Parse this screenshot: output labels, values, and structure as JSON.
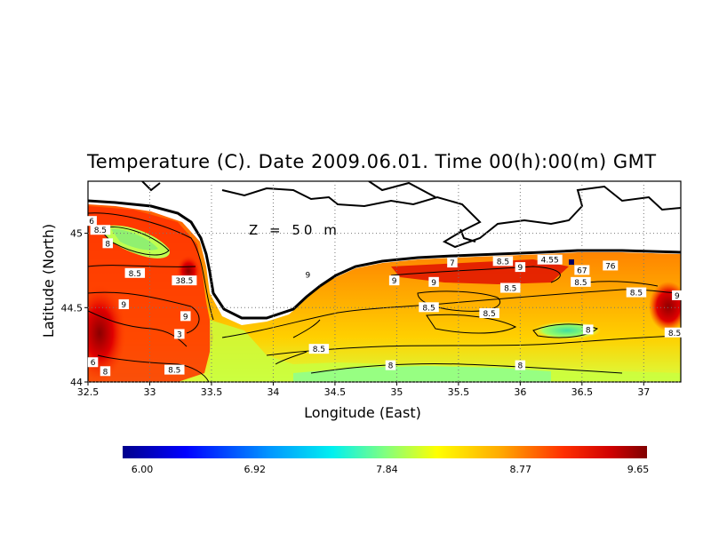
{
  "title": "Temperature (C). Date 2009.06.01. Time 00(h):00(m) GMT",
  "depth_label": "Z = 50 m",
  "axes": {
    "xlabel": "Longitude (East)",
    "ylabel": "Latitude (North)",
    "xlim": [
      32.5,
      37.3
    ],
    "ylim": [
      44.0,
      45.35
    ],
    "xticks": [
      "32.5",
      "33",
      "33.5",
      "34",
      "34.5",
      "35",
      "35.5",
      "36",
      "36.5",
      "37"
    ],
    "yticks": [
      "44",
      "44.5",
      "45"
    ],
    "grid": "dotted"
  },
  "colorbar": {
    "ticks": [
      "6.00",
      "6.92",
      "7.84",
      "8.77",
      "9.65"
    ],
    "min": 6.0,
    "max": 9.65
  },
  "contour_labels": [
    {
      "text": "6",
      "lon": 32.53,
      "lat": 45.08
    },
    {
      "text": "8.5",
      "lon": 32.6,
      "lat": 45.02
    },
    {
      "text": "8",
      "lon": 32.66,
      "lat": 44.93
    },
    {
      "text": "8.5",
      "lon": 32.88,
      "lat": 44.73
    },
    {
      "text": "38.5",
      "lon": 33.28,
      "lat": 44.68
    },
    {
      "text": "9",
      "lon": 32.79,
      "lat": 44.52
    },
    {
      "text": "9",
      "lon": 33.29,
      "lat": 44.44
    },
    {
      "text": "3",
      "lon": 33.24,
      "lat": 44.32
    },
    {
      "text": "6",
      "lon": 32.54,
      "lat": 44.13
    },
    {
      "text": "8",
      "lon": 32.64,
      "lat": 44.07
    },
    {
      "text": "8.5",
      "lon": 33.2,
      "lat": 44.08
    },
    {
      "text": "8.5",
      "lon": 34.37,
      "lat": 44.22
    },
    {
      "text": "8",
      "lon": 34.95,
      "lat": 44.11
    },
    {
      "text": "8",
      "lon": 36.0,
      "lat": 44.11
    },
    {
      "text": "9",
      "lon": 34.28,
      "lat": 44.72
    },
    {
      "text": "9",
      "lon": 34.98,
      "lat": 44.68
    },
    {
      "text": "9",
      "lon": 35.3,
      "lat": 44.67
    },
    {
      "text": "8.5",
      "lon": 35.26,
      "lat": 44.5
    },
    {
      "text": "8.5",
      "lon": 35.75,
      "lat": 44.46
    },
    {
      "text": "8.5",
      "lon": 35.92,
      "lat": 44.63
    },
    {
      "text": "7",
      "lon": 35.45,
      "lat": 44.8
    },
    {
      "text": "8.5",
      "lon": 35.86,
      "lat": 44.81
    },
    {
      "text": "9",
      "lon": 36.0,
      "lat": 44.77
    },
    {
      "text": "4.55",
      "lon": 36.24,
      "lat": 44.82
    },
    {
      "text": "67",
      "lon": 36.5,
      "lat": 44.75
    },
    {
      "text": "76",
      "lon": 36.73,
      "lat": 44.78
    },
    {
      "text": "8.5",
      "lon": 36.49,
      "lat": 44.67
    },
    {
      "text": "8.5",
      "lon": 36.94,
      "lat": 44.6
    },
    {
      "text": "8",
      "lon": 36.55,
      "lat": 44.35
    },
    {
      "text": "8.5",
      "lon": 37.25,
      "lat": 44.33
    },
    {
      "text": "9",
      "lon": 37.27,
      "lat": 44.58
    }
  ]
}
